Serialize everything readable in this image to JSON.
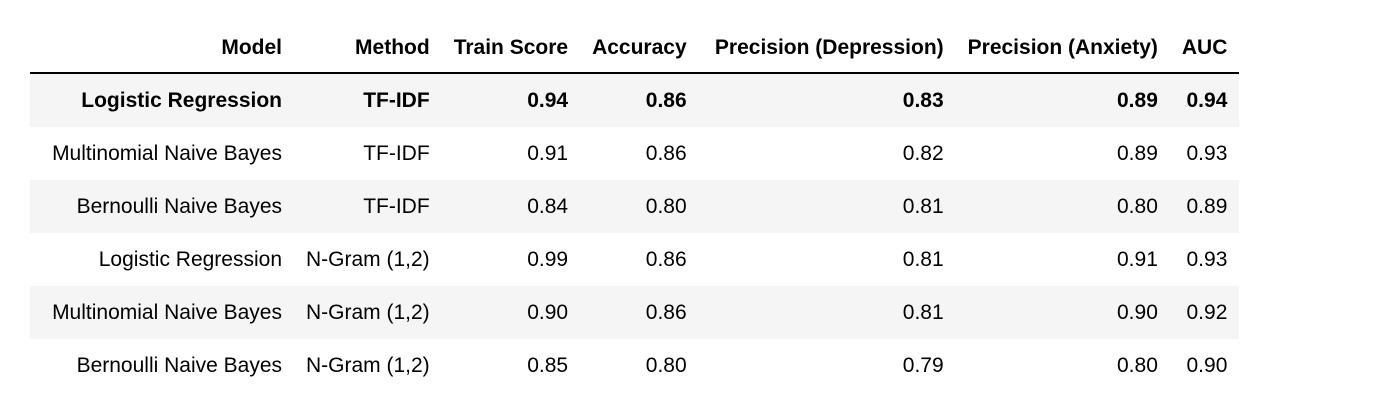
{
  "table": {
    "headers": [
      "Model",
      "Method",
      "Train Score",
      "Accuracy",
      "Precision (Depression)",
      "Precision (Anxiety)",
      "AUC"
    ],
    "rows": [
      [
        "Logistic Regression",
        "TF-IDF",
        "0.94",
        "0.86",
        "0.83",
        "0.89",
        "0.94"
      ],
      [
        "Multinomial Naive Bayes",
        "TF-IDF",
        "0.91",
        "0.86",
        "0.82",
        "0.89",
        "0.93"
      ],
      [
        "Bernoulli Naive Bayes",
        "TF-IDF",
        "0.84",
        "0.80",
        "0.81",
        "0.80",
        "0.89"
      ],
      [
        "Logistic Regression",
        "N-Gram (1,2)",
        "0.99",
        "0.86",
        "0.81",
        "0.91",
        "0.93"
      ],
      [
        "Multinomial Naive Bayes",
        "N-Gram (1,2)",
        "0.90",
        "0.86",
        "0.81",
        "0.90",
        "0.92"
      ],
      [
        "Bernoulli Naive Bayes",
        "N-Gram (1,2)",
        "0.85",
        "0.80",
        "0.79",
        "0.80",
        "0.90"
      ]
    ],
    "highlighted_row": 0
  },
  "colors": {
    "striped_row": "#f5f5f5",
    "text": "#000000",
    "header_rule": "#000000"
  }
}
